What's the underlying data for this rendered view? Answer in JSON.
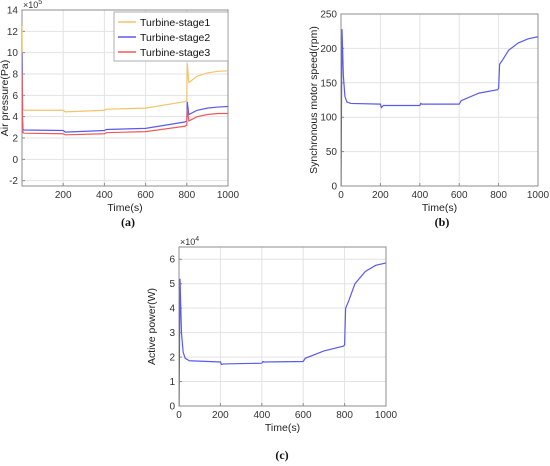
{
  "chart_data": [
    {
      "type": "line",
      "panel_label": "(a)",
      "xlabel": "Time(s)",
      "ylabel": "Air pressure(Pa)",
      "y_exponent": "×10",
      "y_exponent_power": "5",
      "xlim": [
        0,
        1000
      ],
      "ylim": [
        -2.5,
        14
      ],
      "xticks": [
        200,
        400,
        600,
        800,
        1000
      ],
      "yticks": [
        -2,
        0,
        2,
        4,
        6,
        8,
        10,
        12,
        14
      ],
      "grid": true,
      "legend_position": "top-right",
      "series": [
        {
          "name": "Turbine-stage1",
          "color": "#f2c46a",
          "x": [
            0,
            2,
            5,
            10,
            200,
            210,
            400,
            410,
            600,
            790,
            800,
            802,
            810,
            850,
            900,
            950,
            1000
          ],
          "y": [
            12.5,
            6.5,
            4.7,
            4.6,
            4.6,
            4.45,
            4.6,
            4.7,
            4.8,
            5.4,
            5.5,
            9.0,
            7.2,
            7.8,
            8.1,
            8.25,
            8.3
          ]
        },
        {
          "name": "Turbine-stage2",
          "color": "#5a5aee",
          "x": [
            0,
            2,
            5,
            10,
            200,
            210,
            400,
            410,
            600,
            790,
            800,
            802,
            810,
            850,
            900,
            950,
            1000
          ],
          "y": [
            10.0,
            4.0,
            2.8,
            2.75,
            2.7,
            2.55,
            2.7,
            2.8,
            2.9,
            3.5,
            3.6,
            5.4,
            4.2,
            4.6,
            4.8,
            4.9,
            4.95
          ]
        },
        {
          "name": "Turbine-stage3",
          "color": "#ee5a5a",
          "x": [
            0,
            2,
            5,
            10,
            200,
            210,
            400,
            410,
            600,
            790,
            800,
            802,
            810,
            850,
            900,
            950,
            1000
          ],
          "y": [
            8.0,
            3.5,
            2.5,
            2.45,
            2.4,
            2.3,
            2.4,
            2.5,
            2.6,
            3.1,
            3.2,
            4.7,
            3.6,
            4.0,
            4.2,
            4.3,
            4.3
          ]
        }
      ]
    },
    {
      "type": "line",
      "panel_label": "(b)",
      "xlabel": "Time(s)",
      "ylabel": "Synchronous motor speed(rpm)",
      "xlim": [
        0,
        1000
      ],
      "ylim": [
        0,
        250
      ],
      "xticks": [
        0,
        200,
        400,
        600,
        800,
        1000
      ],
      "yticks": [
        0,
        50,
        100,
        150,
        200,
        250
      ],
      "grid": true,
      "series": [
        {
          "name": "",
          "color": "#5a5aee",
          "x": [
            0,
            3,
            5,
            8,
            12,
            20,
            30,
            50,
            200,
            205,
            215,
            400,
            405,
            410,
            600,
            610,
            700,
            795,
            800,
            805,
            820,
            850,
            900,
            950,
            1000
          ],
          "y": [
            0,
            140,
            228,
            200,
            160,
            130,
            122,
            120,
            119,
            114,
            117,
            117,
            120,
            119,
            119,
            124,
            135,
            140,
            142,
            177,
            183,
            197,
            208,
            214,
            217
          ]
        }
      ]
    },
    {
      "type": "line",
      "panel_label": "(c)",
      "xlabel": "Time(s)",
      "ylabel": "Active power(W)",
      "y_exponent": "×10",
      "y_exponent_power": "4",
      "xlim": [
        0,
        1000
      ],
      "ylim": [
        0,
        6.5
      ],
      "xticks": [
        0,
        200,
        400,
        600,
        800,
        1000
      ],
      "yticks": [
        0,
        1,
        2,
        3,
        4,
        5,
        6
      ],
      "grid": true,
      "series": [
        {
          "name": "",
          "color": "#5a5aee",
          "x": [
            0,
            3,
            5,
            8,
            12,
            20,
            30,
            50,
            200,
            205,
            215,
            400,
            405,
            410,
            600,
            610,
            700,
            795,
            800,
            805,
            820,
            850,
            900,
            950,
            1000
          ],
          "y": [
            0,
            3.0,
            5.2,
            4.2,
            3.0,
            2.2,
            1.95,
            1.85,
            1.8,
            1.7,
            1.72,
            1.75,
            1.82,
            1.8,
            1.82,
            1.95,
            2.25,
            2.45,
            2.5,
            4.0,
            4.3,
            5.0,
            5.5,
            5.75,
            5.85
          ]
        }
      ]
    }
  ]
}
